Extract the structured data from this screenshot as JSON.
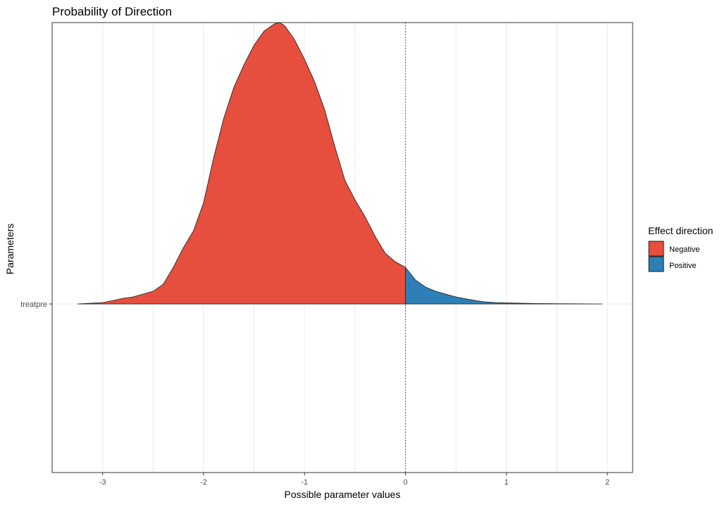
{
  "chart_data": {
    "type": "area",
    "title": "Probability of Direction",
    "xlabel": "Possible parameter values",
    "ylabel": "Parameters",
    "parameter": "treatpre",
    "xlim": [
      -3.5,
      2.25
    ],
    "x_ticks": [
      -3,
      -2,
      -1,
      0,
      1,
      2
    ],
    "y_categories": [
      "treatpre"
    ],
    "grid": true,
    "reference_line": {
      "x": 0,
      "style": "dotted"
    },
    "legend": {
      "title": "Effect direction",
      "position": "right",
      "entries": [
        {
          "name": "Negative",
          "color": "#E64E3D"
        },
        {
          "name": "Positive",
          "color": "#2E7FB6"
        }
      ]
    },
    "density": {
      "x": [
        -3.25,
        -3.0,
        -2.9,
        -2.8,
        -2.7,
        -2.6,
        -2.5,
        -2.4,
        -2.3,
        -2.2,
        -2.1,
        -2.0,
        -1.9,
        -1.8,
        -1.7,
        -1.6,
        -1.5,
        -1.4,
        -1.3,
        -1.25,
        -1.2,
        -1.1,
        -1.0,
        -0.9,
        -0.8,
        -0.7,
        -0.6,
        -0.5,
        -0.4,
        -0.3,
        -0.2,
        -0.1,
        0.0,
        0.1,
        0.2,
        0.3,
        0.4,
        0.5,
        0.6,
        0.7,
        0.8,
        0.9,
        1.0,
        1.1,
        1.2,
        1.3,
        1.5,
        1.7,
        1.95
      ],
      "y": [
        0.0,
        0.005,
        0.012,
        0.02,
        0.025,
        0.035,
        0.045,
        0.07,
        0.13,
        0.2,
        0.26,
        0.36,
        0.52,
        0.66,
        0.77,
        0.85,
        0.92,
        0.97,
        0.995,
        1.0,
        0.99,
        0.94,
        0.87,
        0.79,
        0.69,
        0.56,
        0.44,
        0.37,
        0.31,
        0.24,
        0.18,
        0.15,
        0.13,
        0.085,
        0.06,
        0.045,
        0.035,
        0.025,
        0.018,
        0.012,
        0.007,
        0.005,
        0.004,
        0.003,
        0.002,
        0.0015,
        0.001,
        0.0005,
        0.0
      ]
    }
  }
}
